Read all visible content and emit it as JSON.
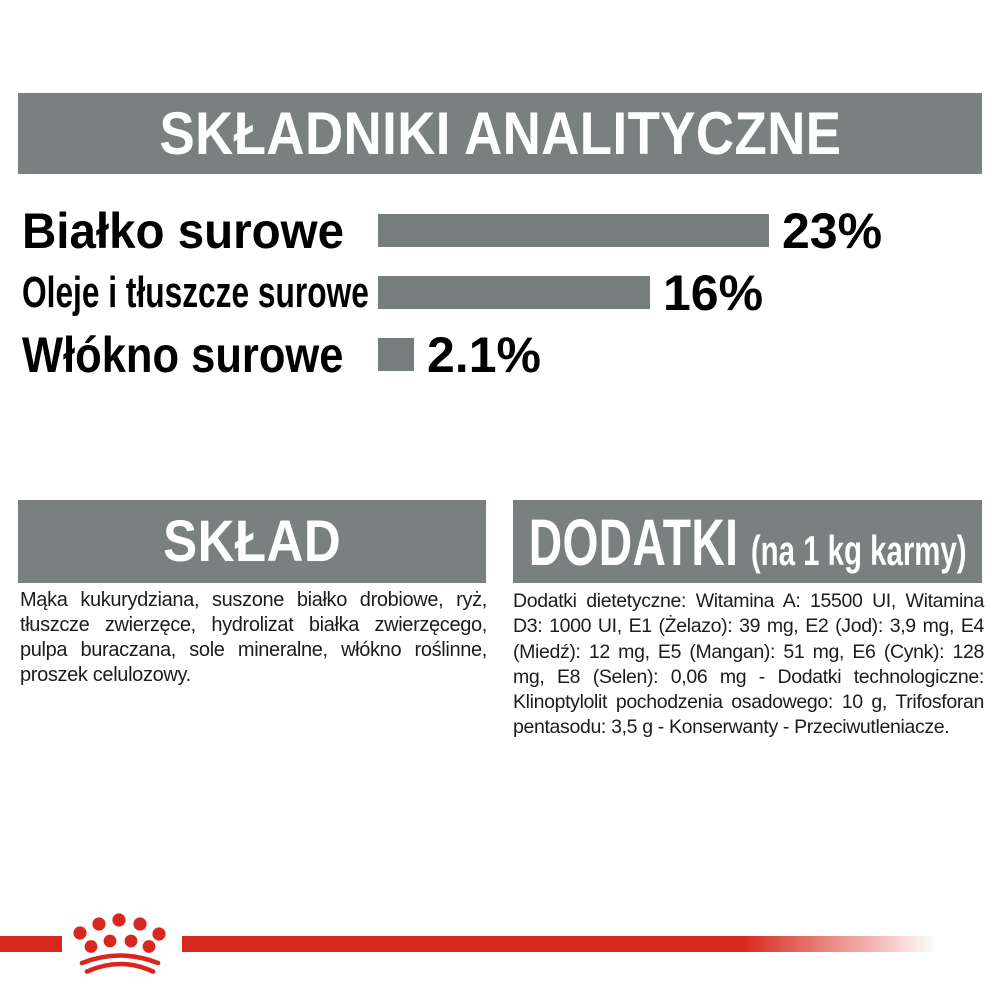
{
  "colors": {
    "section_gray": "#7a8080",
    "bar_gray": "#767d7d",
    "brand_red": "#d8271e",
    "body_text": "#1c1c1c",
    "heading_text": "#ffffff"
  },
  "analytical": {
    "chart_data": {
      "type": "bar",
      "orientation": "horizontal",
      "title": "SKŁADNIKI ANALITYCZNE",
      "categories": [
        "Białko surowe",
        "Oleje i tłuszcze surowe",
        "Włókno surowe"
      ],
      "values": [
        23,
        16,
        2.1
      ],
      "value_labels": [
        "23%",
        "16%",
        "2.1%"
      ],
      "unit": "%",
      "xlim": [
        0,
        25
      ],
      "grid": false,
      "value_label_position": "right",
      "bar_color": "#767d7d"
    }
  },
  "composition": {
    "title": "SKŁAD",
    "body": "Mąka kukurydziana, suszone białko drobiowe, ryż, tłuszcze zwierzęce, hydrolizat białka zwierzęcego, pulpa buraczana, sole mineralne, włókno roślinne, proszek celulozowy."
  },
  "additives": {
    "title": "DODATKI",
    "subtitle": "(na 1 kg karmy)",
    "body": "Dodatki dietetyczne: Witamina A: 15500 UI, Witamina D3: 1000 UI, E1 (Żelazo): 39 mg, E2 (Jod): 3,9 mg, E4 (Miedź): 12 mg, E5 (Mangan): 51 mg, E6 (Cynk): 128 mg, E8 (Selen): 0,06 mg - Dodatki technologiczne: Klinoptylolit pochodzenia osadowego: 10 g, Trifosforan pentasodu: 3,5 g - Konserwanty - Przeciwutleniacze."
  },
  "footer": {
    "logo": "royal-canin-crown"
  }
}
